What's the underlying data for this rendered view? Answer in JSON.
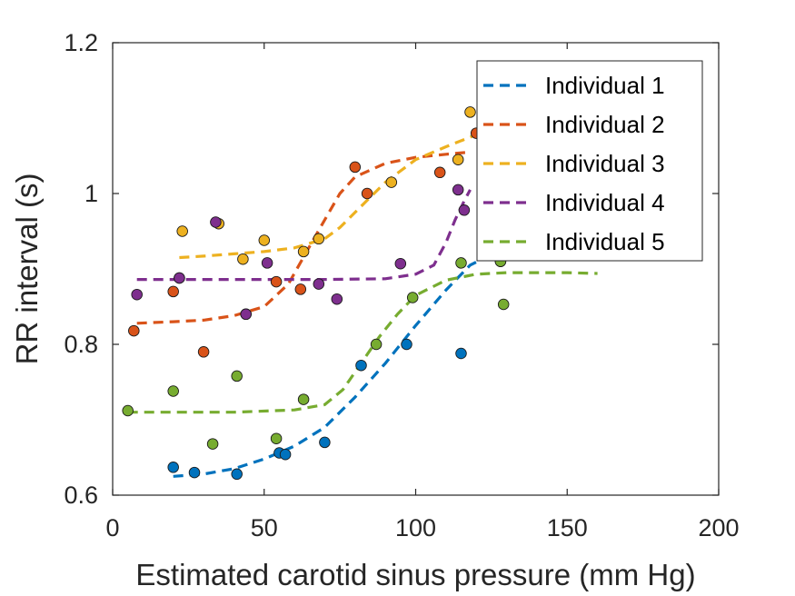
{
  "chart_data": {
    "type": "scatter",
    "title": "",
    "xlabel": "Estimated carotid sinus pressure (mm Hg)",
    "ylabel": "RR interval (s)",
    "xlim": [
      0,
      200
    ],
    "ylim": [
      0.6,
      1.2
    ],
    "xticks": [
      0,
      50,
      100,
      150,
      200
    ],
    "yticks": [
      0.6,
      0.8,
      1,
      1.2
    ],
    "xtick_labels": [
      "0",
      "50",
      "100",
      "150",
      "200"
    ],
    "ytick_labels": [
      "0.6",
      "0.8",
      "1",
      "1.2"
    ],
    "grid": false,
    "legend_position": "top-right",
    "series": [
      {
        "name": "Individual 1",
        "color": "#0072BD",
        "points": [
          [
            20,
            0.637
          ],
          [
            27,
            0.63
          ],
          [
            41,
            0.628
          ],
          [
            55,
            0.656
          ],
          [
            57,
            0.654
          ],
          [
            70,
            0.67
          ],
          [
            82,
            0.772
          ],
          [
            97,
            0.8
          ],
          [
            115,
            0.788
          ],
          [
            128,
            0.91
          ]
        ],
        "fit": [
          [
            20,
            0.625
          ],
          [
            30,
            0.628
          ],
          [
            40,
            0.635
          ],
          [
            50,
            0.648
          ],
          [
            60,
            0.665
          ],
          [
            70,
            0.69
          ],
          [
            80,
            0.73
          ],
          [
            90,
            0.775
          ],
          [
            100,
            0.825
          ],
          [
            110,
            0.872
          ],
          [
            118,
            0.905
          ],
          [
            128,
            0.925
          ],
          [
            140,
            0.94
          ],
          [
            150,
            0.95
          ],
          [
            160,
            0.955
          ]
        ]
      },
      {
        "name": "Individual 2",
        "color": "#D95319",
        "points": [
          [
            7,
            0.818
          ],
          [
            20,
            0.87
          ],
          [
            30,
            0.79
          ],
          [
            44,
            0.84
          ],
          [
            54,
            0.883
          ],
          [
            62,
            0.873
          ],
          [
            80,
            1.035
          ],
          [
            84,
            1.0
          ],
          [
            108,
            1.028
          ],
          [
            120,
            1.08
          ]
        ],
        "fit": [
          [
            8,
            0.828
          ],
          [
            20,
            0.83
          ],
          [
            30,
            0.832
          ],
          [
            40,
            0.838
          ],
          [
            50,
            0.85
          ],
          [
            58,
            0.88
          ],
          [
            65,
            0.93
          ],
          [
            70,
            0.965
          ],
          [
            75,
            1.0
          ],
          [
            80,
            1.022
          ],
          [
            90,
            1.04
          ],
          [
            100,
            1.048
          ],
          [
            110,
            1.052
          ],
          [
            118,
            1.055
          ]
        ]
      },
      {
        "name": "Individual 3",
        "color": "#EDB120",
        "points": [
          [
            22,
            0.888
          ],
          [
            23,
            0.95
          ],
          [
            35,
            0.96
          ],
          [
            43,
            0.913
          ],
          [
            50,
            0.938
          ],
          [
            63,
            0.923
          ],
          [
            68,
            0.94
          ],
          [
            92,
            1.015
          ],
          [
            114,
            1.045
          ],
          [
            118,
            1.108
          ]
        ],
        "fit": [
          [
            22,
            0.915
          ],
          [
            30,
            0.917
          ],
          [
            40,
            0.92
          ],
          [
            50,
            0.923
          ],
          [
            60,
            0.928
          ],
          [
            70,
            0.94
          ],
          [
            75,
            0.955
          ],
          [
            80,
            0.975
          ],
          [
            85,
            0.995
          ],
          [
            90,
            1.015
          ],
          [
            95,
            1.03
          ],
          [
            100,
            1.045
          ],
          [
            110,
            1.062
          ],
          [
            120,
            1.078
          ],
          [
            125,
            1.085
          ]
        ]
      },
      {
        "name": "Individual 4",
        "color": "#7E2F8E",
        "points": [
          [
            8,
            0.866
          ],
          [
            22,
            0.888
          ],
          [
            34,
            0.962
          ],
          [
            44,
            0.84
          ],
          [
            51,
            0.908
          ],
          [
            68,
            0.88
          ],
          [
            74,
            0.86
          ],
          [
            95,
            0.907
          ],
          [
            114,
            1.005
          ],
          [
            116,
            0.978
          ]
        ],
        "fit": [
          [
            8,
            0.886
          ],
          [
            30,
            0.886
          ],
          [
            50,
            0.886
          ],
          [
            70,
            0.886
          ],
          [
            90,
            0.887
          ],
          [
            100,
            0.893
          ],
          [
            106,
            0.905
          ],
          [
            110,
            0.935
          ],
          [
            113,
            0.965
          ],
          [
            116,
            0.99
          ],
          [
            118,
            1.005
          ]
        ]
      },
      {
        "name": "Individual 5",
        "color": "#77AC30",
        "points": [
          [
            5,
            0.712
          ],
          [
            20,
            0.738
          ],
          [
            33,
            0.668
          ],
          [
            41,
            0.758
          ],
          [
            54,
            0.675
          ],
          [
            63,
            0.727
          ],
          [
            87,
            0.8
          ],
          [
            99,
            0.862
          ],
          [
            115,
            0.908
          ],
          [
            128,
            0.91
          ],
          [
            129,
            0.853
          ]
        ],
        "fit": [
          [
            5,
            0.71
          ],
          [
            20,
            0.71
          ],
          [
            40,
            0.71
          ],
          [
            60,
            0.713
          ],
          [
            70,
            0.72
          ],
          [
            76,
            0.74
          ],
          [
            82,
            0.775
          ],
          [
            88,
            0.81
          ],
          [
            94,
            0.84
          ],
          [
            100,
            0.865
          ],
          [
            110,
            0.885
          ],
          [
            120,
            0.893
          ],
          [
            130,
            0.895
          ],
          [
            140,
            0.895
          ],
          [
            150,
            0.895
          ],
          [
            160,
            0.894
          ]
        ]
      }
    ],
    "extra_points": [
      {
        "x": 160,
        "y": 0.92,
        "color": "#0072BD"
      }
    ]
  }
}
